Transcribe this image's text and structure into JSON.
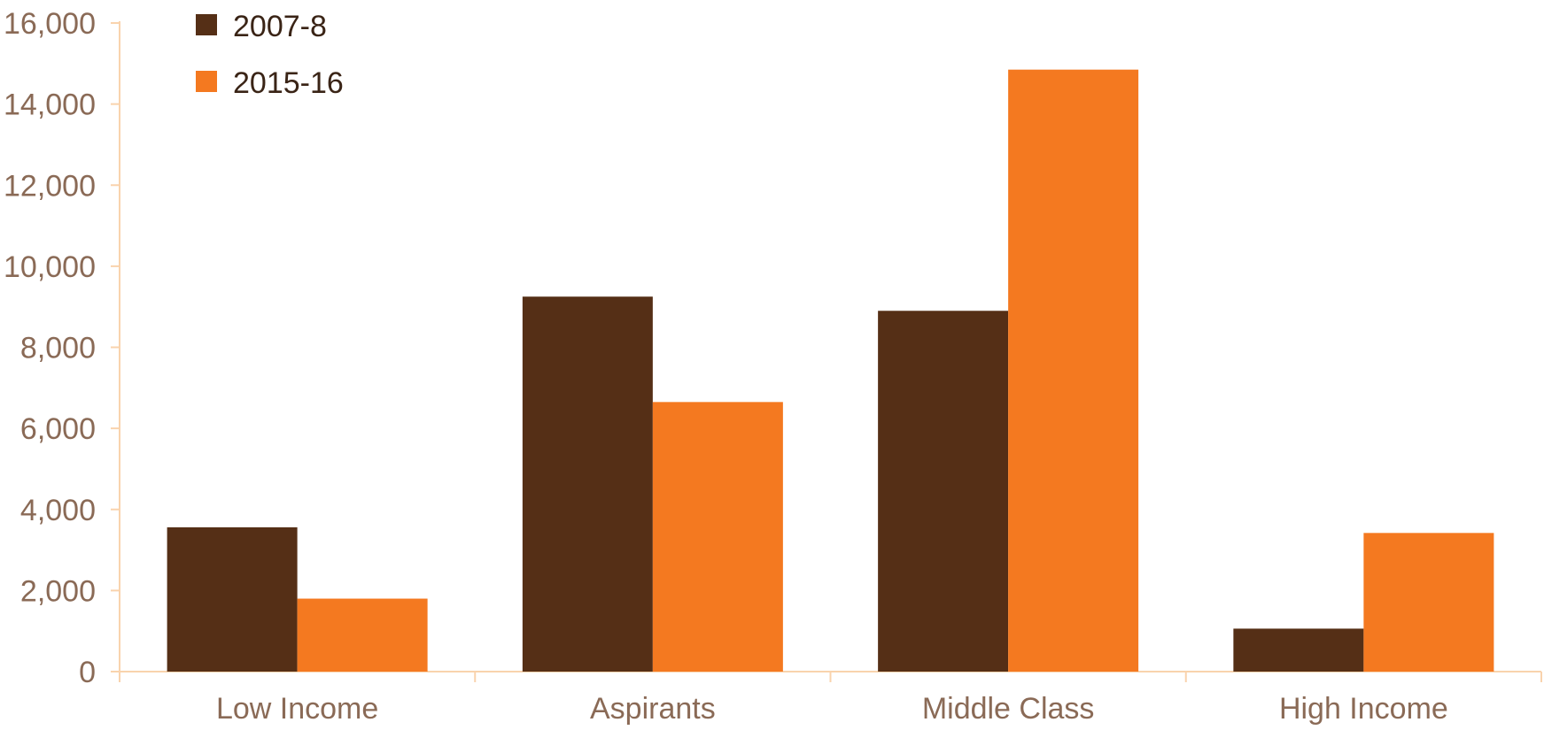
{
  "chart_data": {
    "type": "bar",
    "categories": [
      "Low Income",
      "Aspirants",
      "Middle Class",
      "High Income"
    ],
    "series": [
      {
        "name": "2007-8",
        "values": [
          3560,
          9250,
          8900,
          1060
        ],
        "color": "#552f16"
      },
      {
        "name": "2015-16",
        "values": [
          1800,
          6650,
          14850,
          3420
        ],
        "color": "#f47920"
      }
    ],
    "ylim": [
      0,
      16000
    ],
    "yticks": [
      0,
      2000,
      4000,
      6000,
      8000,
      10000,
      12000,
      14000,
      16000
    ],
    "ytick_labels": [
      "0",
      "2,000",
      "4,000",
      "6,000",
      "8,000",
      "10,000",
      "12,000",
      "14,000",
      "16,000"
    ],
    "axis_color": "#f9d3ad",
    "grid": false,
    "legend_position": "top-left",
    "title": "",
    "xlabel": "",
    "ylabel": ""
  }
}
